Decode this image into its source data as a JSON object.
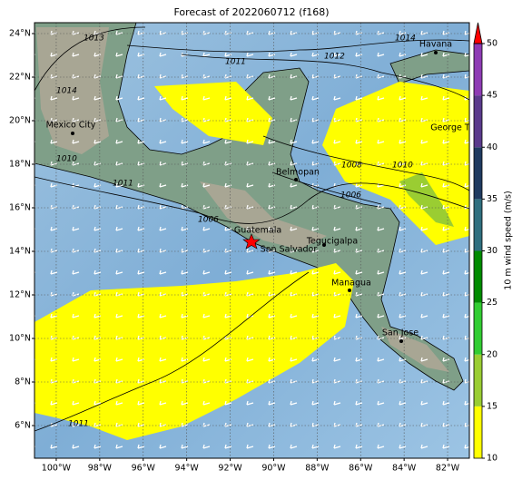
{
  "map": {
    "title": "Forecast of 2022060712 (f168)",
    "xlim": [
      -101,
      -81
    ],
    "ylim": [
      4.5,
      24.5
    ],
    "xticks": [
      {
        "value": -100,
        "label": "100°W"
      },
      {
        "value": -98,
        "label": "98°W"
      },
      {
        "value": -96,
        "label": "96°W"
      },
      {
        "value": -94,
        "label": "94°W"
      },
      {
        "value": -92,
        "label": "92°W"
      },
      {
        "value": -90,
        "label": "90°W"
      },
      {
        "value": -88,
        "label": "88°W"
      },
      {
        "value": -86,
        "label": "86°W"
      },
      {
        "value": -84,
        "label": "84°W"
      },
      {
        "value": -82,
        "label": "82°W"
      }
    ],
    "yticks": [
      {
        "value": 6,
        "label": "6°N"
      },
      {
        "value": 8,
        "label": "8°N"
      },
      {
        "value": 10,
        "label": "10°N"
      },
      {
        "value": 12,
        "label": "12°N"
      },
      {
        "value": 14,
        "label": "14°N"
      },
      {
        "value": 16,
        "label": "16°N"
      },
      {
        "value": 18,
        "label": "18°N"
      },
      {
        "value": 20,
        "label": "20°N"
      },
      {
        "value": 22,
        "label": "22°N"
      },
      {
        "value": 24,
        "label": "24°N"
      }
    ],
    "grid": true,
    "cities": [
      "Havana",
      "Mexico City",
      "George Town",
      "Belmopan",
      "Guatemala",
      "San Salvador",
      "Tegucigalpa",
      "Managua",
      "San Jose"
    ],
    "isobar_labels": [
      "1013",
      "1014",
      "1011",
      "1012",
      "1014",
      "1010",
      "1011",
      "1008",
      "1010",
      "1006",
      "1006",
      "1011"
    ],
    "colorbar": {
      "label": "10 m wind speed (m/s)",
      "lim": [
        10,
        50
      ],
      "ticks": [
        10,
        15,
        20,
        25,
        30,
        35,
        40,
        45,
        50
      ],
      "colors": [
        "#ffff00",
        "#9acd32",
        "#32cd32",
        "#008b00",
        "#2f6f7f",
        "#1f3a60",
        "#5a3a8c",
        "#8e3bb4"
      ],
      "extend_color": "#ff0000"
    }
  }
}
